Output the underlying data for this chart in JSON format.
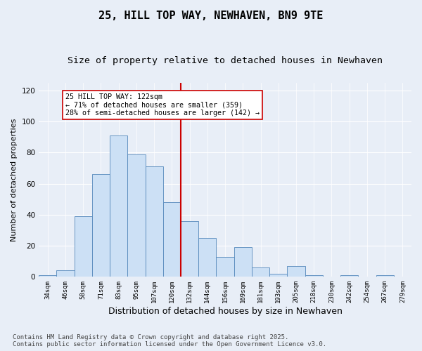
{
  "title": "25, HILL TOP WAY, NEWHAVEN, BN9 9TE",
  "subtitle": "Size of property relative to detached houses in Newhaven",
  "xlabel": "Distribution of detached houses by size in Newhaven",
  "ylabel": "Number of detached properties",
  "bin_labels": [
    "34sqm",
    "46sqm",
    "58sqm",
    "71sqm",
    "83sqm",
    "95sqm",
    "107sqm",
    "120sqm",
    "132sqm",
    "144sqm",
    "156sqm",
    "169sqm",
    "181sqm",
    "193sqm",
    "205sqm",
    "218sqm",
    "230sqm",
    "242sqm",
    "254sqm",
    "267sqm",
    "279sqm"
  ],
  "heights": [
    1,
    4,
    39,
    66,
    91,
    79,
    71,
    48,
    36,
    25,
    13,
    19,
    6,
    2,
    7,
    1,
    0,
    1,
    0,
    1
  ],
  "bar_color": "#cce0f5",
  "bar_edge_color": "#5588bb",
  "vline_x": 7.5,
  "vline_color": "#cc0000",
  "annotation_text": "25 HILL TOP WAY: 122sqm\n← 71% of detached houses are smaller (359)\n28% of semi-detached houses are larger (142) →",
  "annotation_box_color": "#ffffff",
  "annotation_box_edge": "#cc0000",
  "ylim": [
    0,
    125
  ],
  "yticks": [
    0,
    20,
    40,
    60,
    80,
    100,
    120
  ],
  "background_color": "#e8eef7",
  "footer": "Contains HM Land Registry data © Crown copyright and database right 2025.\nContains public sector information licensed under the Open Government Licence v3.0.",
  "title_fontsize": 11,
  "subtitle_fontsize": 9.5,
  "xlabel_fontsize": 9,
  "ylabel_fontsize": 8,
  "footer_fontsize": 6.5
}
